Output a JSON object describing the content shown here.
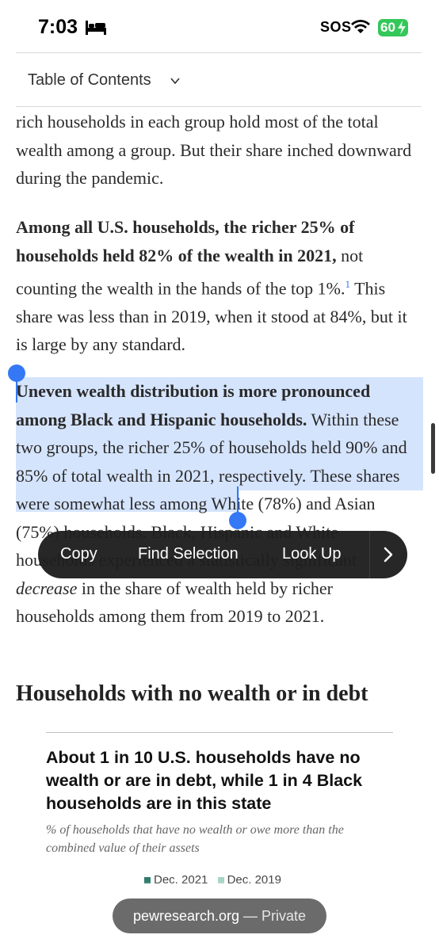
{
  "status_bar": {
    "time": "7:03",
    "sos": "SOS",
    "battery": "60",
    "icons": [
      "bed-icon",
      "wifi-icon",
      "battery-icon"
    ],
    "battery_color": "#34c759"
  },
  "toc": {
    "label": "Table of Contents"
  },
  "article": {
    "para1": "rich households in each group hold most of the total wealth among a group. But their share inched downward during the pandemic.",
    "para2_bold": "Among all U.S. households, the richer 25% of households held 82% of the wealth in 2021,",
    "para2_a": " not counting the wealth in the hands of the top 1%.",
    "para2_footnote": "1",
    "para2_b": " This share was less than in 2019, when it stood at 84%, but it is large by any standard.",
    "para3_bold": "Uneven wealth distribution is more pronounced among Black and Hispanic households.",
    "para3_a": " Within these two groups, the richer 25% of households held 90% and 85% of total wealth in 2021, respectively.",
    "para3_b": " These shares were somewhat less among White (78%) and Asian (75%) households. Black, Hispanic and White households experienced a statistically significant ",
    "para3_italic": "decrease",
    "para3_c": " in the share of wealth held by richer households among them from 2019 to 2021.",
    "section_heading": "Households with no wealth or in debt"
  },
  "context_menu": {
    "copy": "Copy",
    "find_selection": "Find Selection",
    "look_up": "Look Up"
  },
  "figure": {
    "title": "About 1 in 10 U.S. households have no wealth or are in debt, while 1 in 4 Black households are in this state",
    "subtitle": "% of households that have no wealth or owe more than the combined value of their assets",
    "legend": [
      {
        "label": "Dec. 2021",
        "color": "#2e7d6a"
      },
      {
        "label": "Dec. 2019",
        "color": "#a8d5c8"
      }
    ]
  },
  "url_bar": {
    "domain": "pewresearch.org",
    "separator": " — ",
    "mode": "Private"
  },
  "colors": {
    "selection_blue": "#3478f6"
  }
}
